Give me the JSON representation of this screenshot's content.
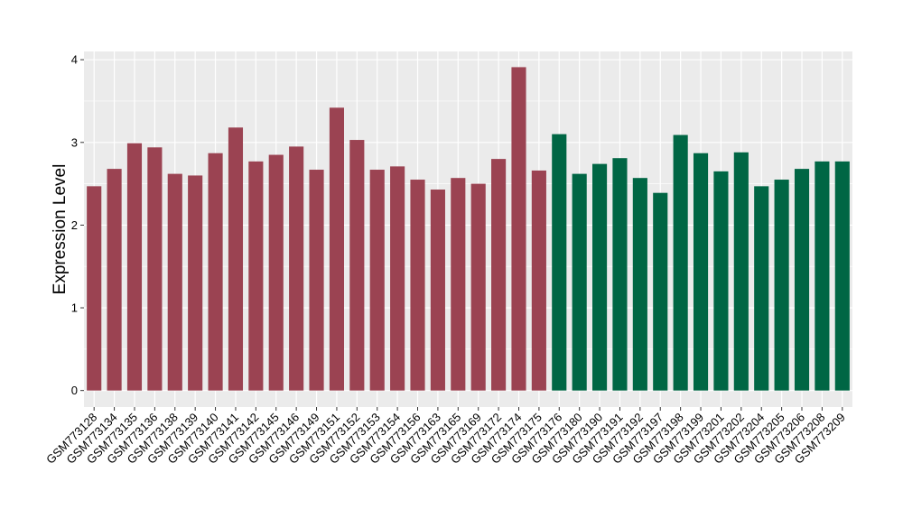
{
  "chart_data": {
    "type": "bar",
    "title": "",
    "xlabel": "",
    "ylabel": "Expression Level",
    "ylim": [
      -0.2,
      4.1
    ],
    "yticks": [
      0,
      1,
      2,
      3,
      4
    ],
    "grid": true,
    "legend": "none",
    "colors": {
      "group1": "#9b4352",
      "group2": "#006644",
      "panel": "#ebebeb",
      "grid": "#ffffff"
    },
    "categories": [
      "GSM773128",
      "GSM773134",
      "GSM773135",
      "GSM773136",
      "GSM773138",
      "GSM773139",
      "GSM773140",
      "GSM773141",
      "GSM773142",
      "GSM773145",
      "GSM773146",
      "GSM773149",
      "GSM773151",
      "GSM773152",
      "GSM773153",
      "GSM773154",
      "GSM773156",
      "GSM773163",
      "GSM773165",
      "GSM773169",
      "GSM773172",
      "GSM773174",
      "GSM773175",
      "GSM773176",
      "GSM773180",
      "GSM773190",
      "GSM773191",
      "GSM773192",
      "GSM773197",
      "GSM773198",
      "GSM773199",
      "GSM773201",
      "GSM773202",
      "GSM773204",
      "GSM773205",
      "GSM773206",
      "GSM773208",
      "GSM773209"
    ],
    "values": [
      2.47,
      2.68,
      2.99,
      2.94,
      2.62,
      2.6,
      2.87,
      3.18,
      2.77,
      2.85,
      2.95,
      2.67,
      3.42,
      3.03,
      2.67,
      2.71,
      2.55,
      2.43,
      2.57,
      2.5,
      2.8,
      3.91,
      2.66,
      3.1,
      2.62,
      2.74,
      2.81,
      2.57,
      2.39,
      3.09,
      2.87,
      2.65,
      2.88,
      2.47,
      2.55,
      2.68,
      2.77,
      2.77
    ],
    "groups": [
      1,
      1,
      1,
      1,
      1,
      1,
      1,
      1,
      1,
      1,
      1,
      1,
      1,
      1,
      1,
      1,
      1,
      1,
      1,
      1,
      1,
      1,
      1,
      2,
      2,
      2,
      2,
      2,
      2,
      2,
      2,
      2,
      2,
      2,
      2,
      2,
      2,
      2
    ]
  }
}
